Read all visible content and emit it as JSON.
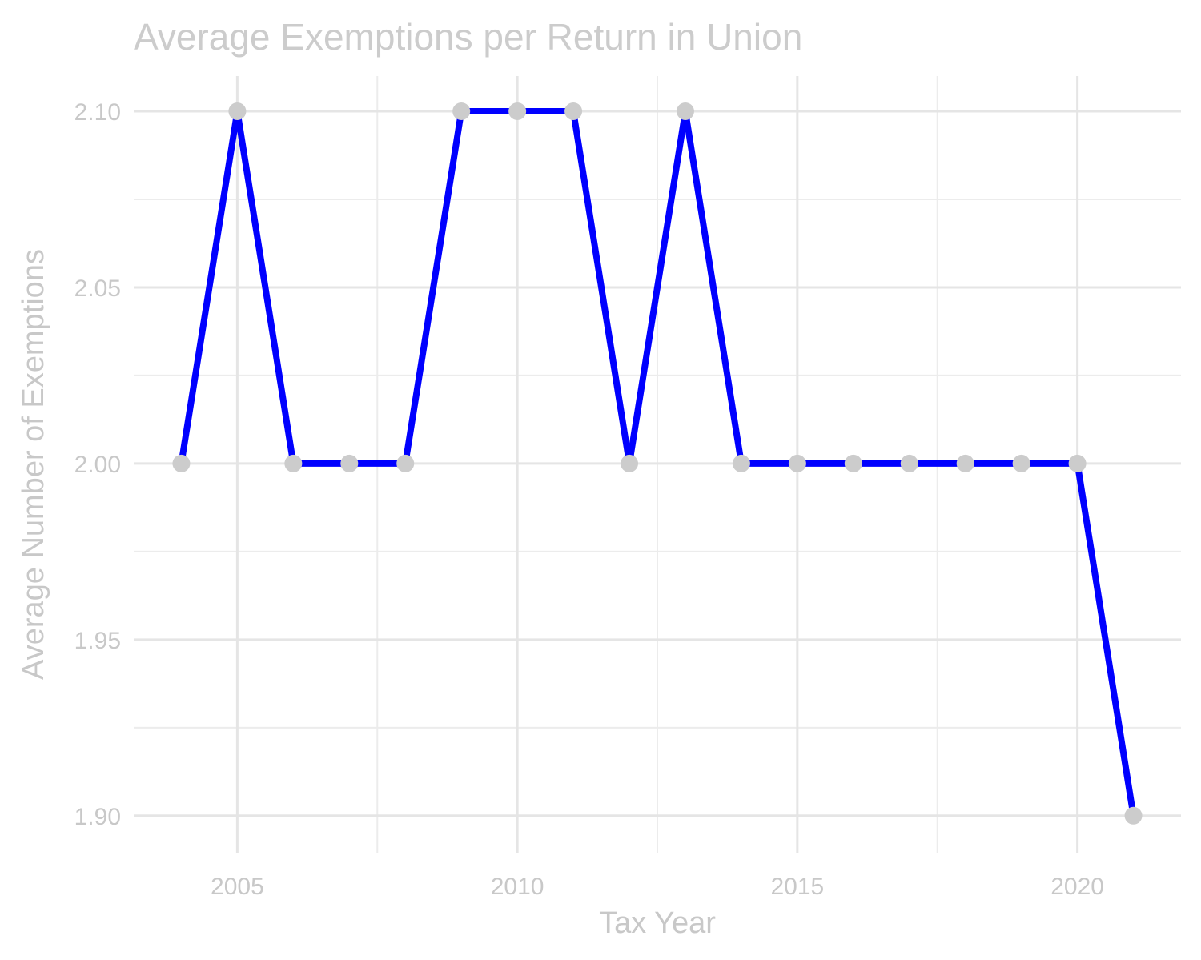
{
  "chart_data": {
    "type": "line",
    "title": "Average Exemptions per Return in Union",
    "xlabel": "Tax Year",
    "ylabel": "Average Number of Exemptions",
    "x": [
      2004,
      2005,
      2006,
      2007,
      2008,
      2009,
      2010,
      2011,
      2012,
      2013,
      2014,
      2015,
      2016,
      2017,
      2018,
      2019,
      2020,
      2021
    ],
    "series": [
      {
        "values": [
          2.0,
          2.1,
          2.0,
          2.0,
          2.0,
          2.1,
          2.1,
          2.1,
          2.0,
          2.1,
          2.0,
          2.0,
          2.0,
          2.0,
          2.0,
          2.0,
          2.0,
          1.9
        ]
      }
    ],
    "xlim": [
      2003.15,
      2021.85
    ],
    "ylim": [
      1.8895,
      2.11
    ],
    "x_ticks": [
      2005,
      2010,
      2015,
      2020
    ],
    "x_tick_labels": [
      "2005",
      "2010",
      "2015",
      "2020"
    ],
    "y_ticks": [
      1.9,
      1.95,
      2.0,
      2.05,
      2.1
    ],
    "y_tick_labels": [
      "1.90",
      "1.95",
      "2.00",
      "2.05",
      "2.10"
    ],
    "grid": true,
    "line_color": "#0000ff",
    "point_color": "#cccccc"
  }
}
